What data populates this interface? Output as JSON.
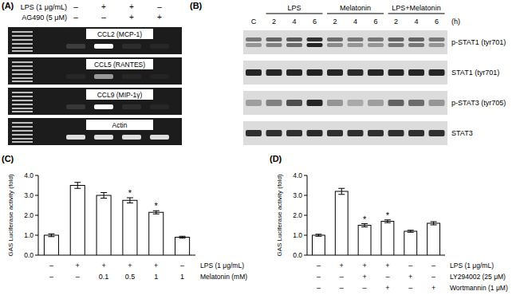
{
  "panels": [
    "(A)",
    "(B)",
    "(C)",
    "(D)"
  ],
  "gel": {
    "conditions": [
      {
        "label": "LPS (1 μg/mL)",
        "values": [
          "–",
          "+",
          "+",
          "–"
        ]
      },
      {
        "label": "AG490 (5 μM)",
        "values": [
          "–",
          "–",
          "+",
          "+"
        ]
      }
    ],
    "rows": [
      {
        "label": "CCL2 (MCP-1)",
        "intensity": [
          0.15,
          1.0,
          0.08,
          0.05
        ]
      },
      {
        "label": "CCL5 (RANTES)",
        "intensity": [
          0.05,
          0.55,
          0.05,
          0.03
        ]
      },
      {
        "label": "CCL9 (MIP-1γ)",
        "intensity": [
          0.12,
          1.0,
          0.08,
          0.05
        ]
      },
      {
        "label": "Actin",
        "intensity": [
          0.85,
          0.85,
          0.85,
          0.85
        ]
      }
    ]
  },
  "blot": {
    "control": "C",
    "groups": [
      {
        "label": "LPS",
        "times": [
          2,
          4,
          6
        ]
      },
      {
        "label": "Melatonin",
        "times": [
          2,
          4,
          6
        ]
      },
      {
        "label": "LPS+Melatonin",
        "times": [
          2,
          4,
          6
        ]
      }
    ],
    "time_unit": "(h)",
    "rows": [
      {
        "label": "p-STAT1 (tyr701)",
        "bands": [
          [
            0.5,
            0.6,
            0.65,
            0.85,
            0.55,
            0.5,
            0.5,
            0.6,
            0.6,
            0.5
          ],
          [
            0.35,
            0.45,
            0.55,
            0.9,
            0.4,
            0.35,
            0.35,
            0.5,
            0.5,
            0.35
          ]
        ]
      },
      {
        "label": "STAT1 (tyr701)",
        "bands": [
          [
            0.9,
            0.9,
            0.9,
            0.92,
            0.9,
            0.88,
            0.9,
            0.9,
            0.9,
            0.9
          ]
        ]
      },
      {
        "label": "p-STAT3 (tyr705)",
        "bands": [
          [
            0.3,
            0.45,
            0.7,
            0.9,
            0.35,
            0.25,
            0.3,
            0.6,
            0.55,
            0.35
          ]
        ]
      },
      {
        "label": "STAT3",
        "bands": [
          [
            0.85,
            0.85,
            0.85,
            0.88,
            0.85,
            0.85,
            0.85,
            0.85,
            0.85,
            0.85
          ]
        ]
      }
    ]
  },
  "chart_data": [
    {
      "type": "bar",
      "categories": [
        null,
        null,
        null,
        null,
        null,
        null
      ],
      "values": [
        1.0,
        3.5,
        3.0,
        2.75,
        2.15,
        0.9
      ],
      "errors": [
        0.07,
        0.15,
        0.14,
        0.13,
        0.08,
        0.05
      ],
      "color": "#ffffff",
      "ylabel": "GAS Luciferase activity (fold)",
      "ylim": [
        0,
        4
      ],
      "yticks": [
        {
          "value": 0,
          "label": "0.0"
        },
        {
          "value": 1,
          "label": "1.0"
        },
        {
          "value": 2,
          "label": "2.0"
        },
        {
          "value": 3,
          "label": "3.0"
        },
        {
          "value": 4,
          "label": "4.0"
        }
      ],
      "annotations": [
        {
          "index": 3,
          "text": "*"
        },
        {
          "index": 4,
          "text": "*"
        }
      ],
      "conditions": [
        {
          "label": "LPS (1 μg/mL)",
          "values": [
            "–",
            "+",
            "+",
            "+",
            "+",
            "–"
          ]
        },
        {
          "label": "Melatonin (mM)",
          "values": [
            "–",
            "–",
            "0.1",
            "0.5",
            "1",
            "1"
          ]
        }
      ]
    },
    {
      "type": "bar",
      "categories": [
        null,
        null,
        null,
        null,
        null,
        null
      ],
      "values": [
        1.0,
        3.2,
        1.5,
        1.7,
        1.2,
        1.6
      ],
      "errors": [
        0.05,
        0.15,
        0.08,
        0.07,
        0.05,
        0.08
      ],
      "color": "#ffffff",
      "ylabel": "GAS Luciferase activity (fold)",
      "ylim": [
        0,
        4
      ],
      "yticks": [
        {
          "value": 0,
          "label": "0.0"
        },
        {
          "value": 1,
          "label": "1.0"
        },
        {
          "value": 2,
          "label": "2.0"
        },
        {
          "value": 3,
          "label": "3.0"
        },
        {
          "value": 4,
          "label": "4.0"
        }
      ],
      "annotations": [
        {
          "index": 2,
          "text": "*"
        },
        {
          "index": 3,
          "text": "*"
        }
      ],
      "conditions": [
        {
          "label": "LPS (1 μg/mL)",
          "values": [
            "–",
            "+",
            "+",
            "+",
            "–",
            "–"
          ]
        },
        {
          "label": "LY294002 (25 μM)",
          "values": [
            "–",
            "–",
            "+",
            "–",
            "+",
            "–"
          ]
        },
        {
          "label": "Wortmannin (1 μM)",
          "values": [
            "–",
            "–",
            "–",
            "+",
            "–",
            "+"
          ]
        }
      ]
    }
  ]
}
